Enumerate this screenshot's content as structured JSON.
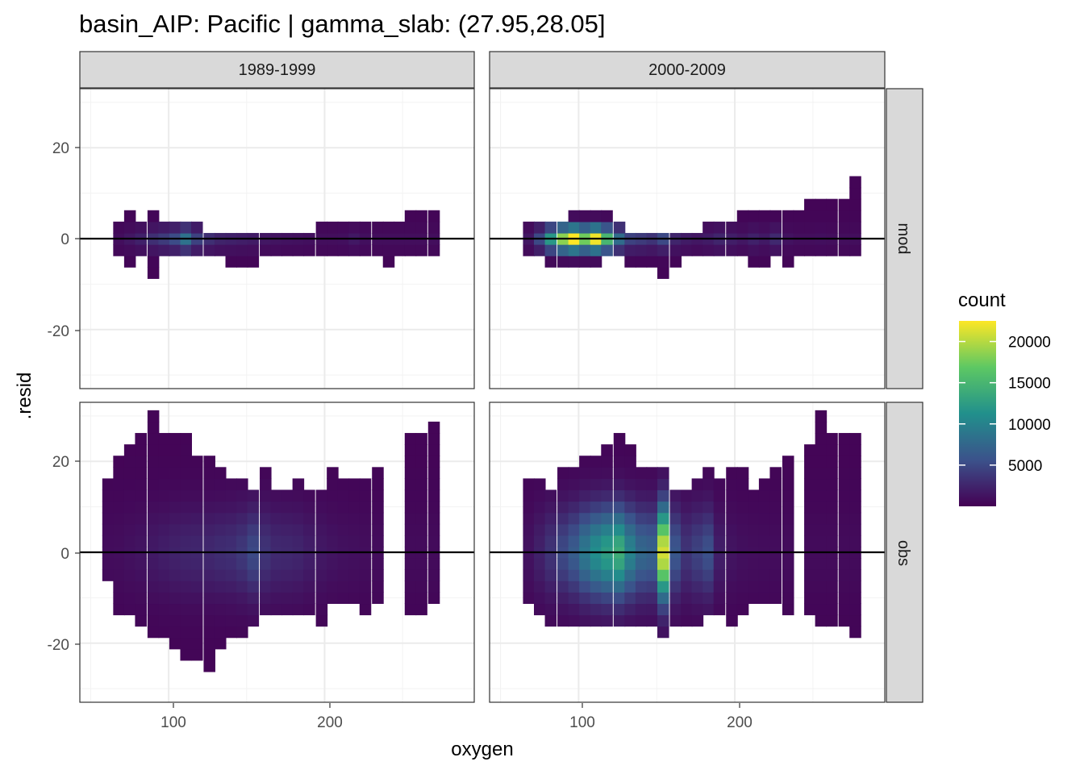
{
  "chart_data": {
    "type": "heatmap",
    "title": "basin_AIP: Pacific | gamma_slab: (27.95,28.05]",
    "xlabel": "oxygen",
    "ylabel": ".resid",
    "xlim": [
      43,
      296
    ],
    "ylim": [
      -33,
      33
    ],
    "x_ticks": [
      "100",
      "200"
    ],
    "y_ticks": [
      "20",
      "0",
      "-20"
    ],
    "column_facets": [
      "1989-1999",
      "2000-2009"
    ],
    "row_facets": [
      "mod",
      "obs"
    ],
    "legend": {
      "title": "count",
      "position": "right",
      "ticks": [
        "20000",
        "15000",
        "10000",
        "5000"
      ],
      "tick_values": [
        20000,
        15000,
        10000,
        5000
      ],
      "range": [
        0,
        22500
      ],
      "colors": [
        "#440154",
        "#3b528b",
        "#21908c",
        "#5dc863",
        "#fde725"
      ]
    },
    "hline": 0,
    "bin_width": [
      7.2,
      2.5
    ],
    "panels": [
      {
        "period": "1989-1999",
        "type": "mod",
        "columns": [
          {
            "x": 68,
            "ymin": -3.75,
            "ymax": 3.75,
            "peak": 900
          },
          {
            "x": 75,
            "ymin": -6.25,
            "ymax": 6.25,
            "peak": 1500
          },
          {
            "x": 82,
            "ymin": -3.75,
            "ymax": 3.75,
            "peak": 2200
          },
          {
            "x": 90,
            "ymin": -8.75,
            "ymax": 6.25,
            "peak": 3200
          },
          {
            "x": 97,
            "ymin": -3.75,
            "ymax": 3.75,
            "peak": 4000
          },
          {
            "x": 104,
            "ymin": -3.75,
            "ymax": 3.75,
            "peak": 5200
          },
          {
            "x": 111,
            "ymin": -3.75,
            "ymax": 3.75,
            "peak": 8500
          },
          {
            "x": 118,
            "ymin": -3.75,
            "ymax": 3.75,
            "peak": 4500
          },
          {
            "x": 126,
            "ymin": -3.75,
            "ymax": 1.25,
            "peak": 3200
          },
          {
            "x": 133,
            "ymin": -3.75,
            "ymax": 1.25,
            "peak": 2400
          },
          {
            "x": 140,
            "ymin": -6.25,
            "ymax": 1.25,
            "peak": 2200
          },
          {
            "x": 147,
            "ymin": -6.25,
            "ymax": 1.25,
            "peak": 2000
          },
          {
            "x": 154,
            "ymin": -6.25,
            "ymax": 1.25,
            "peak": 1800
          },
          {
            "x": 162,
            "ymin": -3.75,
            "ymax": 1.25,
            "peak": 1500
          },
          {
            "x": 169,
            "ymin": -3.75,
            "ymax": 1.25,
            "peak": 1300
          },
          {
            "x": 176,
            "ymin": -3.75,
            "ymax": 1.25,
            "peak": 1200
          },
          {
            "x": 183,
            "ymin": -3.75,
            "ymax": 1.25,
            "peak": 1100
          },
          {
            "x": 190,
            "ymin": -3.75,
            "ymax": 1.25,
            "peak": 1000
          },
          {
            "x": 198,
            "ymin": -3.75,
            "ymax": 3.75,
            "peak": 900
          },
          {
            "x": 205,
            "ymin": -3.75,
            "ymax": 3.75,
            "peak": 900
          },
          {
            "x": 212,
            "ymin": -3.75,
            "ymax": 3.75,
            "peak": 1000
          },
          {
            "x": 219,
            "ymin": -3.75,
            "ymax": 3.75,
            "peak": 1600
          },
          {
            "x": 226,
            "ymin": -3.75,
            "ymax": 3.75,
            "peak": 1000
          },
          {
            "x": 234,
            "ymin": -3.75,
            "ymax": 3.75,
            "peak": 900
          },
          {
            "x": 241,
            "ymin": -6.25,
            "ymax": 3.75,
            "peak": 900
          },
          {
            "x": 248,
            "ymin": -3.75,
            "ymax": 3.75,
            "peak": 900
          },
          {
            "x": 255,
            "ymin": -3.75,
            "ymax": 6.25,
            "peak": 900
          },
          {
            "x": 262,
            "ymin": -3.75,
            "ymax": 6.25,
            "peak": 900
          },
          {
            "x": 270,
            "ymin": -3.75,
            "ymax": 6.25,
            "peak": 900
          }
        ]
      },
      {
        "period": "2000-2009",
        "type": "mod",
        "columns": [
          {
            "x": 68,
            "ymin": -3.75,
            "ymax": 3.75,
            "peak": 1500
          },
          {
            "x": 75,
            "ymin": -3.75,
            "ymax": 3.75,
            "peak": 5000
          },
          {
            "x": 82,
            "ymin": -6.25,
            "ymax": 3.75,
            "peak": 12000
          },
          {
            "x": 90,
            "ymin": -6.25,
            "ymax": 3.75,
            "peak": 18500
          },
          {
            "x": 97,
            "ymin": -6.25,
            "ymax": 6.25,
            "peak": 22500
          },
          {
            "x": 104,
            "ymin": -6.25,
            "ymax": 6.25,
            "peak": 17500
          },
          {
            "x": 111,
            "ymin": -6.25,
            "ymax": 6.25,
            "peak": 22000
          },
          {
            "x": 118,
            "ymin": -3.75,
            "ymax": 6.25,
            "peak": 15000
          },
          {
            "x": 126,
            "ymin": -3.75,
            "ymax": 3.75,
            "peak": 8000
          },
          {
            "x": 133,
            "ymin": -6.25,
            "ymax": 1.25,
            "peak": 4500
          },
          {
            "x": 140,
            "ymin": -6.25,
            "ymax": 1.25,
            "peak": 4000
          },
          {
            "x": 147,
            "ymin": -6.25,
            "ymax": 1.25,
            "peak": 3500
          },
          {
            "x": 154,
            "ymin": -8.75,
            "ymax": 1.25,
            "peak": 5000
          },
          {
            "x": 162,
            "ymin": -6.25,
            "ymax": 1.25,
            "peak": 2500
          },
          {
            "x": 169,
            "ymin": -3.75,
            "ymax": 1.25,
            "peak": 1800
          },
          {
            "x": 176,
            "ymin": -3.75,
            "ymax": 1.25,
            "peak": 1500
          },
          {
            "x": 183,
            "ymin": -3.75,
            "ymax": 3.75,
            "peak": 1800
          },
          {
            "x": 190,
            "ymin": -3.75,
            "ymax": 3.75,
            "peak": 2500
          },
          {
            "x": 198,
            "ymin": -3.75,
            "ymax": 3.75,
            "peak": 2000
          },
          {
            "x": 205,
            "ymin": -3.75,
            "ymax": 6.25,
            "peak": 1500
          },
          {
            "x": 212,
            "ymin": -6.25,
            "ymax": 6.25,
            "peak": 2200
          },
          {
            "x": 219,
            "ymin": -6.25,
            "ymax": 6.25,
            "peak": 1700
          },
          {
            "x": 226,
            "ymin": -3.75,
            "ymax": 6.25,
            "peak": 2800
          },
          {
            "x": 234,
            "ymin": -6.25,
            "ymax": 6.25,
            "peak": 1200
          },
          {
            "x": 241,
            "ymin": -3.75,
            "ymax": 6.25,
            "peak": 900
          },
          {
            "x": 248,
            "ymin": -3.75,
            "ymax": 8.75,
            "peak": 900
          },
          {
            "x": 255,
            "ymin": -3.75,
            "ymax": 8.75,
            "peak": 1000
          },
          {
            "x": 262,
            "ymin": -3.75,
            "ymax": 8.75,
            "peak": 900
          },
          {
            "x": 270,
            "ymin": -3.75,
            "ymax": 8.75,
            "peak": 900
          },
          {
            "x": 277,
            "ymin": -3.75,
            "ymax": 13.75,
            "peak": 900
          }
        ]
      },
      {
        "period": "1989-1999",
        "type": "obs",
        "columns": [
          {
            "x": 61,
            "ymin": -6.25,
            "ymax": 16.25,
            "peak": 800
          },
          {
            "x": 68,
            "ymin": -13.75,
            "ymax": 21.25,
            "peak": 900
          },
          {
            "x": 75,
            "ymin": -13.75,
            "ymax": 23.75,
            "peak": 1100
          },
          {
            "x": 82,
            "ymin": -16.25,
            "ymax": 26.25,
            "peak": 1300
          },
          {
            "x": 90,
            "ymin": -18.75,
            "ymax": 31.25,
            "peak": 1700
          },
          {
            "x": 97,
            "ymin": -18.75,
            "ymax": 26.25,
            "peak": 2000
          },
          {
            "x": 104,
            "ymin": -21.25,
            "ymax": 26.25,
            "peak": 2300
          },
          {
            "x": 111,
            "ymin": -23.75,
            "ymax": 26.25,
            "peak": 2500
          },
          {
            "x": 118,
            "ymin": -23.75,
            "ymax": 21.25,
            "peak": 2600
          },
          {
            "x": 126,
            "ymin": -26.25,
            "ymax": 21.25,
            "peak": 2700
          },
          {
            "x": 133,
            "ymin": -21.25,
            "ymax": 18.75,
            "peak": 3000
          },
          {
            "x": 140,
            "ymin": -18.75,
            "ymax": 16.25,
            "peak": 3200
          },
          {
            "x": 147,
            "ymin": -18.75,
            "ymax": 16.25,
            "peak": 3800
          },
          {
            "x": 154,
            "ymin": -16.25,
            "ymax": 13.75,
            "peak": 5000
          },
          {
            "x": 162,
            "ymin": -13.75,
            "ymax": 18.75,
            "peak": 3500
          },
          {
            "x": 169,
            "ymin": -13.75,
            "ymax": 13.75,
            "peak": 2800
          },
          {
            "x": 176,
            "ymin": -13.75,
            "ymax": 13.75,
            "peak": 2700
          },
          {
            "x": 183,
            "ymin": -13.75,
            "ymax": 16.25,
            "peak": 2500
          },
          {
            "x": 190,
            "ymin": -13.75,
            "ymax": 13.75,
            "peak": 2000
          },
          {
            "x": 198,
            "ymin": -16.25,
            "ymax": 13.75,
            "peak": 1600
          },
          {
            "x": 205,
            "ymin": -11.25,
            "ymax": 18.75,
            "peak": 1300
          },
          {
            "x": 212,
            "ymin": -11.25,
            "ymax": 16.25,
            "peak": 1100
          },
          {
            "x": 219,
            "ymin": -11.25,
            "ymax": 16.25,
            "peak": 1000
          },
          {
            "x": 226,
            "ymin": -13.75,
            "ymax": 16.25,
            "peak": 900
          },
          {
            "x": 234,
            "ymin": -11.25,
            "ymax": 18.75,
            "peak": 800
          },
          {
            "x": 255,
            "ymin": -13.75,
            "ymax": 26.25,
            "peak": 700
          },
          {
            "x": 262,
            "ymin": -13.75,
            "ymax": 26.25,
            "peak": 700
          },
          {
            "x": 270,
            "ymin": -11.25,
            "ymax": 28.75,
            "peak": 700
          }
        ]
      },
      {
        "period": "2000-2009",
        "type": "obs",
        "columns": [
          {
            "x": 68,
            "ymin": -11.25,
            "ymax": 16.25,
            "peak": 1200
          },
          {
            "x": 75,
            "ymin": -13.75,
            "ymax": 16.25,
            "peak": 2200
          },
          {
            "x": 82,
            "ymin": -16.25,
            "ymax": 13.75,
            "peak": 3500
          },
          {
            "x": 90,
            "ymin": -16.25,
            "ymax": 18.75,
            "peak": 5000
          },
          {
            "x": 97,
            "ymin": -16.25,
            "ymax": 18.75,
            "peak": 6500
          },
          {
            "x": 104,
            "ymin": -16.25,
            "ymax": 21.25,
            "peak": 9000
          },
          {
            "x": 111,
            "ymin": -16.25,
            "ymax": 21.25,
            "peak": 11000
          },
          {
            "x": 118,
            "ymin": -16.25,
            "ymax": 23.75,
            "peak": 12500
          },
          {
            "x": 126,
            "ymin": -16.25,
            "ymax": 26.25,
            "peak": 14000
          },
          {
            "x": 133,
            "ymin": -16.25,
            "ymax": 23.75,
            "peak": 10000
          },
          {
            "x": 140,
            "ymin": -16.25,
            "ymax": 18.75,
            "peak": 7500
          },
          {
            "x": 147,
            "ymin": -16.25,
            "ymax": 18.75,
            "peak": 7000
          },
          {
            "x": 154,
            "ymin": -18.75,
            "ymax": 18.75,
            "peak": 21000
          },
          {
            "x": 162,
            "ymin": -16.25,
            "ymax": 13.75,
            "peak": 6000
          },
          {
            "x": 169,
            "ymin": -16.25,
            "ymax": 13.75,
            "peak": 3500
          },
          {
            "x": 176,
            "ymin": -16.25,
            "ymax": 16.25,
            "peak": 4500
          },
          {
            "x": 183,
            "ymin": -13.75,
            "ymax": 18.75,
            "peak": 5500
          },
          {
            "x": 190,
            "ymin": -13.75,
            "ymax": 16.25,
            "peak": 2000
          },
          {
            "x": 198,
            "ymin": -16.25,
            "ymax": 18.75,
            "peak": 1300
          },
          {
            "x": 205,
            "ymin": -13.75,
            "ymax": 18.75,
            "peak": 1000
          },
          {
            "x": 212,
            "ymin": -11.25,
            "ymax": 13.75,
            "peak": 900
          },
          {
            "x": 219,
            "ymin": -11.25,
            "ymax": 16.25,
            "peak": 800
          },
          {
            "x": 226,
            "ymin": -11.25,
            "ymax": 18.75,
            "peak": 800
          },
          {
            "x": 234,
            "ymin": -13.75,
            "ymax": 21.25,
            "peak": 800
          },
          {
            "x": 248,
            "ymin": -13.75,
            "ymax": 23.75,
            "peak": 700
          },
          {
            "x": 255,
            "ymin": -16.25,
            "ymax": 31.25,
            "peak": 700
          },
          {
            "x": 262,
            "ymin": -16.25,
            "ymax": 26.25,
            "peak": 700
          },
          {
            "x": 270,
            "ymin": -16.25,
            "ymax": 26.25,
            "peak": 700
          },
          {
            "x": 277,
            "ymin": -18.75,
            "ymax": 26.25,
            "peak": 700
          }
        ]
      }
    ]
  }
}
